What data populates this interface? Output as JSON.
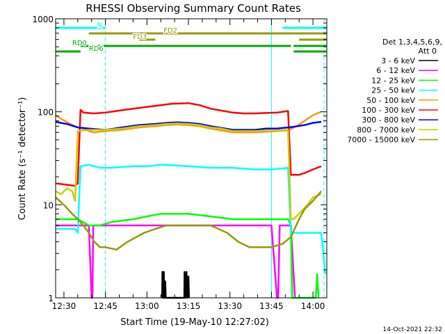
{
  "chart_data": {
    "type": "line",
    "title": "RHESSI Observing Summary Count Rates",
    "xlabel": "Start Time (19-May-10 12:27:02)",
    "ylabel": "Count Rate (s⁻¹ detector⁻¹)",
    "yscale": "log",
    "ylim": [
      1,
      1000
    ],
    "y_ticks": [
      {
        "value": 1,
        "label": "1"
      },
      {
        "value": 10,
        "label": "10"
      },
      {
        "value": 100,
        "label": "100"
      },
      {
        "value": 1000,
        "label": "1000"
      }
    ],
    "xlim_minutes": [
      0,
      98
    ],
    "x_ticks": [
      {
        "minute": 3,
        "label": "12:30"
      },
      {
        "minute": 18,
        "label": "12:45"
      },
      {
        "minute": 33,
        "label": "13:00"
      },
      {
        "minute": 48,
        "label": "13:15"
      },
      {
        "minute": 63,
        "label": "13:30"
      },
      {
        "minute": 78,
        "label": "13:45"
      },
      {
        "minute": 93,
        "label": "14:00"
      }
    ],
    "legend_header": [
      "Det 1,3,4,5,6,9,",
      "Att 0"
    ],
    "legend_position": "right",
    "series": [
      {
        "name": "3 - 6 keV",
        "color": "#000000",
        "points": [
          [
            38.5,
            1
          ],
          [
            38.6,
            1.9
          ],
          [
            38.8,
            1
          ],
          [
            39.1,
            1.9
          ],
          [
            39.3,
            1
          ],
          [
            39.6,
            1.5
          ],
          [
            39.8,
            1
          ],
          [
            46.5,
            1
          ],
          [
            46.6,
            1.9
          ],
          [
            46.8,
            1
          ],
          [
            47.3,
            1.9
          ],
          [
            47.5,
            1
          ],
          [
            48.0,
            1.7
          ],
          [
            48.2,
            1
          ]
        ]
      },
      {
        "name": "6 - 12 keV",
        "color": "#ff00ff",
        "points": [
          [
            0,
            6
          ],
          [
            12,
            6
          ],
          [
            13,
            1
          ],
          [
            13.3,
            1
          ],
          [
            13.6,
            6
          ],
          [
            20,
            6
          ],
          [
            28,
            6
          ],
          [
            33,
            6
          ],
          [
            38,
            6
          ],
          [
            48,
            6
          ],
          [
            56,
            6
          ],
          [
            64,
            6
          ],
          [
            72,
            6
          ],
          [
            78,
            6
          ],
          [
            80,
            1
          ],
          [
            80.4,
            1
          ],
          [
            81,
            6
          ],
          [
            85,
            6
          ],
          [
            86.5,
            1
          ],
          [
            87,
            1
          ]
        ]
      },
      {
        "name": "12 - 25 keV",
        "color": "#00ff00",
        "points": [
          [
            0,
            7
          ],
          [
            8,
            7
          ],
          [
            12,
            6
          ],
          [
            16,
            6
          ],
          [
            20,
            6.5
          ],
          [
            28,
            7
          ],
          [
            33,
            7.5
          ],
          [
            38,
            8
          ],
          [
            48,
            8
          ],
          [
            56,
            7.5
          ],
          [
            64,
            7
          ],
          [
            72,
            7
          ],
          [
            78,
            7
          ],
          [
            84,
            7
          ],
          [
            85,
            6
          ],
          [
            85.5,
            1
          ],
          [
            86,
            1
          ],
          [
            94,
            1
          ],
          [
            94.5,
            1.8
          ],
          [
            95,
            1
          ]
        ]
      },
      {
        "name": "25 - 50 keV",
        "color": "#00ffff",
        "points": [
          [
            0,
            5.5
          ],
          [
            7,
            5.5
          ],
          [
            8,
            5
          ],
          [
            9,
            26
          ],
          [
            12,
            27
          ],
          [
            16,
            25
          ],
          [
            20,
            25
          ],
          [
            28,
            26
          ],
          [
            33,
            26
          ],
          [
            38,
            27
          ],
          [
            48,
            26
          ],
          [
            56,
            25
          ],
          [
            64,
            25
          ],
          [
            72,
            24
          ],
          [
            78,
            24
          ],
          [
            84,
            25
          ],
          [
            85,
            5
          ],
          [
            88,
            5
          ],
          [
            92,
            5
          ],
          [
            96,
            5
          ],
          [
            97.5,
            1.8
          ]
        ]
      },
      {
        "name": "50 - 100 keV",
        "color": "#ff9900",
        "points": [
          [
            0,
            92
          ],
          [
            2,
            84
          ],
          [
            4,
            78
          ],
          [
            6,
            72
          ],
          [
            8,
            68
          ],
          [
            10,
            66
          ],
          [
            12,
            62
          ],
          [
            14,
            60
          ],
          [
            18,
            62
          ],
          [
            24,
            64
          ],
          [
            30,
            68
          ],
          [
            36,
            70
          ],
          [
            40,
            72
          ],
          [
            44,
            73
          ],
          [
            48,
            72
          ],
          [
            52,
            70
          ],
          [
            56,
            66
          ],
          [
            60,
            63
          ],
          [
            64,
            60
          ],
          [
            68,
            60
          ],
          [
            72,
            60
          ],
          [
            76,
            61
          ],
          [
            80,
            62
          ],
          [
            84,
            63
          ],
          [
            87,
            70
          ],
          [
            90,
            80
          ],
          [
            93,
            92
          ],
          [
            96,
            100
          ]
        ]
      },
      {
        "name": "100 - 300 keV",
        "color": "#ff0000",
        "points": [
          [
            0,
            17
          ],
          [
            7,
            16
          ],
          [
            8,
            17
          ],
          [
            9,
            105
          ],
          [
            10,
            98
          ],
          [
            14,
            96
          ],
          [
            18,
            98
          ],
          [
            24,
            104
          ],
          [
            30,
            110
          ],
          [
            36,
            116
          ],
          [
            42,
            122
          ],
          [
            48,
            124
          ],
          [
            52,
            118
          ],
          [
            56,
            108
          ],
          [
            60,
            103
          ],
          [
            64,
            98
          ],
          [
            68,
            96
          ],
          [
            72,
            96
          ],
          [
            76,
            97
          ],
          [
            80,
            98
          ],
          [
            84,
            102
          ],
          [
            85,
            21
          ],
          [
            88,
            21
          ],
          [
            90,
            22
          ],
          [
            93,
            24
          ],
          [
            96,
            26
          ]
        ]
      },
      {
        "name": "300 - 800 keV",
        "color": "#0000ff",
        "points": [
          [
            0,
            78
          ],
          [
            4,
            74
          ],
          [
            8,
            68
          ],
          [
            12,
            66
          ],
          [
            18,
            64
          ],
          [
            24,
            68
          ],
          [
            30,
            72
          ],
          [
            36,
            74
          ],
          [
            40,
            76
          ],
          [
            44,
            77
          ],
          [
            48,
            76
          ],
          [
            52,
            74
          ],
          [
            56,
            70
          ],
          [
            60,
            67
          ],
          [
            64,
            64
          ],
          [
            68,
            64
          ],
          [
            72,
            64
          ],
          [
            76,
            66
          ],
          [
            80,
            66
          ],
          [
            84,
            68
          ],
          [
            86,
            69
          ],
          [
            90,
            72
          ],
          [
            93,
            76
          ],
          [
            96,
            78
          ]
        ]
      },
      {
        "name": "800 - 7000 keV",
        "color": "#cccc00",
        "points": [
          [
            0,
            14
          ],
          [
            2,
            13
          ],
          [
            4,
            15
          ],
          [
            6,
            14
          ],
          [
            7,
            11
          ],
          [
            8,
            62
          ],
          [
            12,
            64
          ],
          [
            18,
            64
          ],
          [
            24,
            66
          ],
          [
            30,
            70
          ],
          [
            36,
            72
          ],
          [
            40,
            74
          ],
          [
            44,
            75
          ],
          [
            48,
            74
          ],
          [
            52,
            72
          ],
          [
            56,
            68
          ],
          [
            60,
            66
          ],
          [
            64,
            62
          ],
          [
            68,
            62
          ],
          [
            72,
            62
          ],
          [
            76,
            63
          ],
          [
            80,
            63
          ],
          [
            84,
            64
          ],
          [
            85,
            7
          ],
          [
            86,
            7
          ],
          [
            88,
            8
          ],
          [
            91,
            10
          ],
          [
            93,
            12
          ],
          [
            96,
            13
          ]
        ]
      },
      {
        "name": "7000 - 15000 keV",
        "color": "#999900",
        "points": [
          [
            0,
            12
          ],
          [
            3,
            10
          ],
          [
            6,
            8
          ],
          [
            8,
            7
          ],
          [
            10,
            6
          ],
          [
            12,
            5
          ],
          [
            14,
            4
          ],
          [
            16,
            3.5
          ],
          [
            18,
            3.5
          ],
          [
            22,
            3.3
          ],
          [
            26,
            4
          ],
          [
            32,
            5
          ],
          [
            36,
            5.5
          ],
          [
            40,
            6
          ],
          [
            48,
            6
          ],
          [
            56,
            6
          ],
          [
            62,
            5
          ],
          [
            66,
            4
          ],
          [
            70,
            3.5
          ],
          [
            74,
            3.5
          ],
          [
            78,
            3.5
          ],
          [
            82,
            3.8
          ],
          [
            85,
            4.5
          ],
          [
            88,
            7
          ],
          [
            90,
            9
          ],
          [
            93,
            11
          ],
          [
            96,
            14
          ]
        ]
      }
    ],
    "flags": [
      {
        "name": "N",
        "color": "#00ffff",
        "segments": [
          [
            0,
            18
          ],
          [
            82,
            98
          ]
        ]
      },
      {
        "name": "FD2",
        "color": "#999900",
        "segments": [
          [
            12,
            86
          ],
          [
            86,
            98
          ]
        ]
      },
      {
        "name": "FD3",
        "color": "#999900",
        "segments": [
          [
            30,
            36
          ],
          [
            88,
            98
          ]
        ]
      },
      {
        "name": "RD0",
        "color": "#00aa00",
        "segments": [
          [
            9,
            85
          ],
          [
            86,
            98
          ]
        ]
      },
      {
        "name": "RD6",
        "color": "#00aa00",
        "segments": [
          [
            0,
            9
          ],
          [
            86,
            98
          ]
        ]
      }
    ],
    "vertical_lines": [
      {
        "minute": 0,
        "color": "#00ffff",
        "style": "solid"
      },
      {
        "minute": 18,
        "color": "#00ffff",
        "style": "dashed"
      },
      {
        "minute": 78,
        "color": "#00ffff",
        "style": "solid"
      },
      {
        "minute": 97,
        "color": "#00ffff",
        "style": "dashed"
      }
    ],
    "footer_timestamp": "14-Oct-2021 22:32"
  }
}
